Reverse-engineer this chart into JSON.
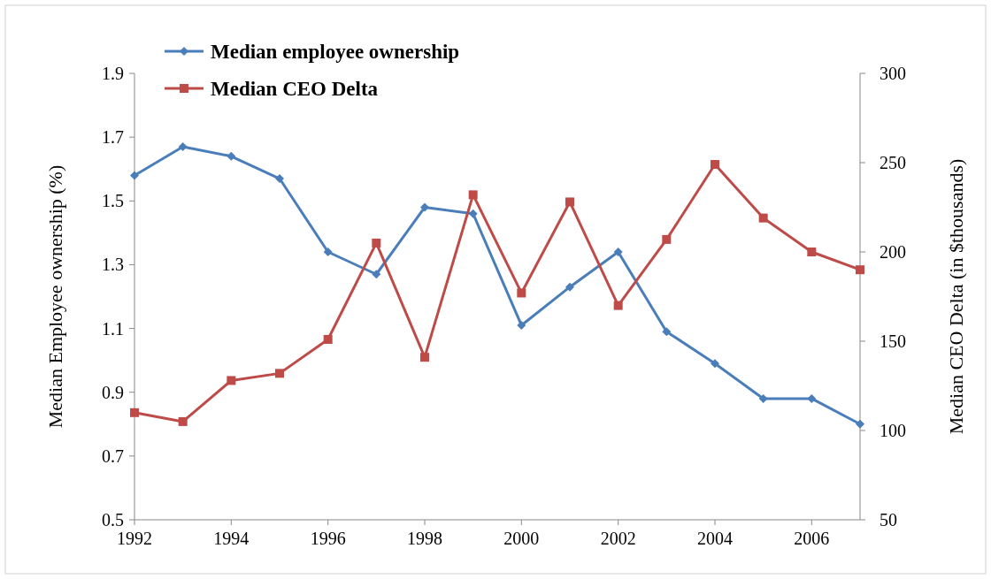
{
  "chart_data": {
    "type": "line",
    "ylabel": "Median Employee ownership (%)",
    "y2label": "Median CEO Delta (in $thousands)",
    "x": [
      1992,
      1993,
      1994,
      1995,
      1996,
      1997,
      1998,
      1999,
      2000,
      2001,
      2002,
      2003,
      2004,
      2005,
      2006,
      2007
    ],
    "series": [
      {
        "name": "Median employee ownership",
        "color": "#4a7ebb",
        "marker": "diamond",
        "values": [
          1.58,
          1.67,
          1.64,
          1.57,
          1.34,
          1.27,
          1.48,
          1.46,
          1.11,
          1.23,
          1.34,
          1.09,
          0.99,
          0.88,
          0.88,
          0.8
        ]
      },
      {
        "name": "Median CEO Delta",
        "color": "#be4b48",
        "marker": "square",
        "axis": "y2",
        "values": [
          110,
          105,
          128,
          132,
          151,
          205,
          141,
          232,
          177,
          228,
          170,
          207,
          249,
          219,
          200,
          190
        ]
      }
    ],
    "xlim": [
      1992,
      2007
    ],
    "xticks": [
      1992,
      1994,
      1996,
      1998,
      2000,
      2002,
      2004,
      2006
    ],
    "ylim": [
      0.5,
      1.9
    ],
    "yticks": [
      {
        "value": 0.5,
        "label": "0.5"
      },
      {
        "value": 0.7,
        "label": "0.7"
      },
      {
        "value": 0.9,
        "label": "0.9"
      },
      {
        "value": 1.1,
        "label": "1.1"
      },
      {
        "value": 1.3,
        "label": "1.3"
      },
      {
        "value": 1.5,
        "label": "1.5"
      },
      {
        "value": 1.7,
        "label": "1.7"
      },
      {
        "value": 1.9,
        "label": "1.9"
      }
    ],
    "y2lim": [
      50,
      300
    ],
    "y2ticks": [
      50,
      100,
      150,
      200,
      250,
      300
    ],
    "legend": "top left",
    "grid": false
  }
}
